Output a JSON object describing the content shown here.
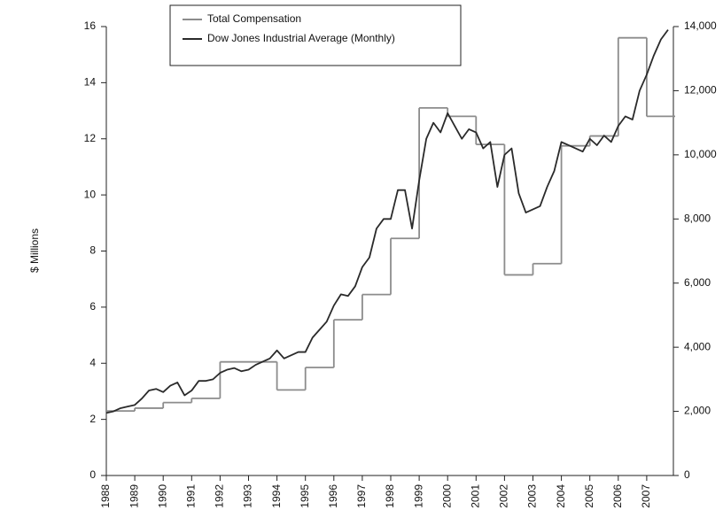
{
  "chart_data": {
    "type": "line",
    "y_label": "$ Millions",
    "xlim": [
      1988,
      2008
    ],
    "xticks": [
      1988,
      1989,
      1990,
      1991,
      1992,
      1993,
      1994,
      1995,
      1996,
      1997,
      1998,
      1999,
      2000,
      2001,
      2002,
      2003,
      2004,
      2005,
      2006,
      2007
    ],
    "ylim": [
      0,
      16
    ],
    "yticks": [
      0,
      2,
      4,
      6,
      8,
      10,
      12,
      14,
      16
    ],
    "y2lim": [
      0,
      14000
    ],
    "y2ticks": [
      0,
      {
        "value": 2000,
        "label": "2,000"
      },
      {
        "value": 4000,
        "label": "4,000"
      },
      {
        "value": 6000,
        "label": "6,000"
      },
      {
        "value": 8000,
        "label": "8,000"
      },
      {
        "value": 10000,
        "label": "10,000"
      },
      {
        "value": 12000,
        "label": "12,000"
      },
      {
        "value": 14000,
        "label": "14,000"
      }
    ],
    "legend_loc": "upper left",
    "series": [
      {
        "name": "Total Compensation",
        "color": "#8c8c8c",
        "step": true,
        "x": [
          1988,
          1989,
          1990,
          1991,
          1992,
          1994,
          1995,
          1996,
          1997,
          1998,
          1999,
          2000,
          2001,
          2002,
          2003,
          2004,
          2005,
          2006,
          2007
        ],
        "values": [
          2.3,
          2.4,
          2.6,
          2.75,
          4.05,
          3.05,
          3.85,
          5.55,
          6.45,
          8.45,
          13.1,
          12.8,
          11.8,
          7.15,
          7.55,
          11.75,
          12.1,
          15.6,
          12.8
        ]
      },
      {
        "name": "Dow Jones Industrial Average (Monthly)",
        "color": "#2a2a2a",
        "axis": "y2",
        "x": [
          1988,
          1988.25,
          1988.5,
          1988.75,
          1989,
          1989.25,
          1989.5,
          1989.75,
          1990,
          1990.25,
          1990.5,
          1990.75,
          1991,
          1991.25,
          1991.5,
          1991.75,
          1992,
          1992.25,
          1992.5,
          1992.75,
          1993,
          1993.25,
          1993.5,
          1993.75,
          1994,
          1994.25,
          1994.5,
          1994.75,
          1995,
          1995.25,
          1995.5,
          1995.75,
          1996,
          1996.25,
          1996.5,
          1996.75,
          1997,
          1997.25,
          1997.5,
          1997.75,
          1998,
          1998.25,
          1998.5,
          1998.75,
          1999,
          1999.25,
          1999.5,
          1999.75,
          2000,
          2000.25,
          2000.5,
          2000.75,
          2001,
          2001.25,
          2001.5,
          2001.75,
          2002,
          2002.25,
          2002.5,
          2002.75,
          2003,
          2003.25,
          2003.5,
          2003.75,
          2004,
          2004.25,
          2004.5,
          2004.75,
          2005,
          2005.25,
          2005.5,
          2005.75,
          2006,
          2006.25,
          2006.5,
          2006.75,
          2007,
          2007.25,
          2007.5,
          2007.75
        ],
        "values": [
          1950,
          2000,
          2100,
          2150,
          2200,
          2400,
          2650,
          2700,
          2600,
          2800,
          2900,
          2500,
          2650,
          2950,
          2950,
          3000,
          3200,
          3300,
          3350,
          3250,
          3300,
          3450,
          3550,
          3650,
          3900,
          3650,
          3750,
          3850,
          3850,
          4300,
          4550,
          4800,
          5300,
          5650,
          5600,
          5900,
          6500,
          6800,
          7700,
          8000,
          8000,
          8900,
          8900,
          7700,
          9200,
          10500,
          11000,
          10700,
          11300,
          10900,
          10500,
          10800,
          10700,
          10200,
          10400,
          9000,
          10000,
          10200,
          8800,
          8200,
          8300,
          8400,
          9000,
          9500,
          10400,
          10300,
          10200,
          10100,
          10500,
          10300,
          10600,
          10400,
          10900,
          11200,
          11100,
          12000,
          12500,
          13100,
          13600,
          13900
        ]
      }
    ]
  }
}
